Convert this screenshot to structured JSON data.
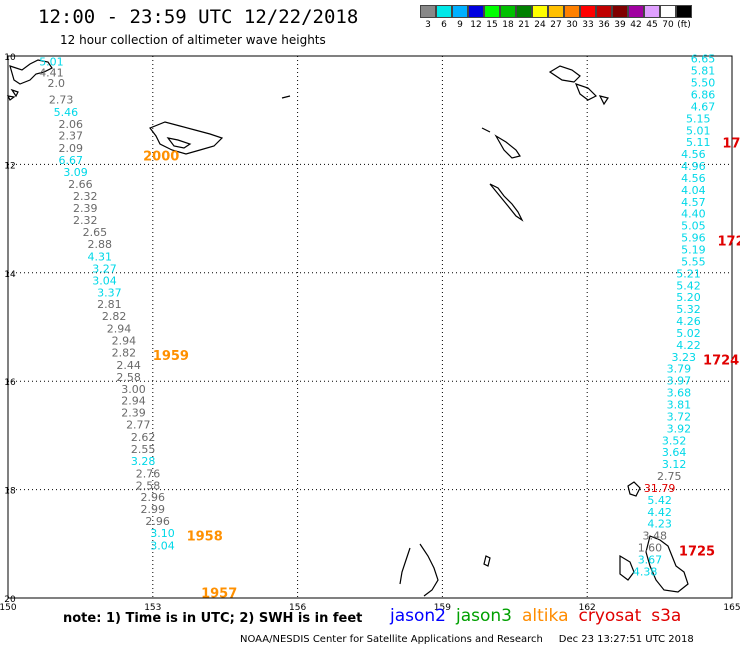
{
  "header": {
    "title": "12:00 - 23:59 UTC 12/22/2018",
    "subtitle": "12 hour collection of altimeter wave heights"
  },
  "legend": {
    "colors": [
      "#888888",
      "#00e8e8",
      "#00b0ff",
      "#0000e0",
      "#00ff00",
      "#00c000",
      "#008000",
      "#ffff00",
      "#ffc000",
      "#ff8000",
      "#ff0000",
      "#c00000",
      "#800000",
      "#a000a0",
      "#e0a0ff",
      "#ffffff",
      "#000000"
    ],
    "labels": [
      "3",
      "6",
      "9",
      "12",
      "15",
      "18",
      "21",
      "24",
      "27",
      "30",
      "33",
      "36",
      "39",
      "42",
      "45",
      "70",
      "(ft)"
    ]
  },
  "axes": {
    "lon_ticks": [
      "150",
      "153",
      "156",
      "159",
      "162",
      "165"
    ],
    "lat_ticks": [
      "10",
      "12",
      "14",
      "16",
      "18",
      "20"
    ]
  },
  "tracks": {
    "left": {
      "times": [
        {
          "text": "2000",
          "lat": 11.84,
          "lon": 152.8
        },
        {
          "text": "1959",
          "lat": 15.52,
          "lon": 153.0
        },
        {
          "text": "1958",
          "lat": 18.85,
          "lon": 153.7
        },
        {
          "text": "1957",
          "lat": 19.9,
          "lon": 154.0
        }
      ],
      "points": [
        {
          "v": "5.01",
          "lat": 10.1,
          "lon": 150.9,
          "c": "cyan"
        },
        {
          "v": "4.41",
          "lat": 10.3,
          "lon": 150.9,
          "c": "gray"
        },
        {
          "v": "2.0",
          "lat": 10.5,
          "lon": 151.0,
          "c": "gray"
        },
        {
          "v": "2.73",
          "lat": 10.8,
          "lon": 151.1,
          "c": "gray"
        },
        {
          "v": "5.46",
          "lat": 11.03,
          "lon": 151.2,
          "c": "cyan"
        },
        {
          "v": "2.06",
          "lat": 11.25,
          "lon": 151.3,
          "c": "gray"
        },
        {
          "v": "2.37",
          "lat": 11.47,
          "lon": 151.3,
          "c": "gray"
        },
        {
          "v": "2.09",
          "lat": 11.7,
          "lon": 151.3,
          "c": "gray"
        },
        {
          "v": "6.67",
          "lat": 11.92,
          "lon": 151.3,
          "c": "cyan"
        },
        {
          "v": "3.09",
          "lat": 12.14,
          "lon": 151.4,
          "c": "cyan"
        },
        {
          "v": "2.66",
          "lat": 12.36,
          "lon": 151.5,
          "c": "gray"
        },
        {
          "v": "2.32",
          "lat": 12.58,
          "lon": 151.6,
          "c": "gray"
        },
        {
          "v": "2.39",
          "lat": 12.8,
          "lon": 151.6,
          "c": "gray"
        },
        {
          "v": "2.32",
          "lat": 13.03,
          "lon": 151.6,
          "c": "gray"
        },
        {
          "v": "2.65",
          "lat": 13.25,
          "lon": 151.8,
          "c": "gray"
        },
        {
          "v": "2.88",
          "lat": 13.47,
          "lon": 151.9,
          "c": "gray"
        },
        {
          "v": "4.31",
          "lat": 13.7,
          "lon": 151.9,
          "c": "cyan"
        },
        {
          "v": "3.27",
          "lat": 13.92,
          "lon": 152.0,
          "c": "cyan"
        },
        {
          "v": "3.04",
          "lat": 14.14,
          "lon": 152.0,
          "c": "cyan"
        },
        {
          "v": "3.37",
          "lat": 14.36,
          "lon": 152.1,
          "c": "cyan"
        },
        {
          "v": "2.81",
          "lat": 14.58,
          "lon": 152.1,
          "c": "gray"
        },
        {
          "v": "2.82",
          "lat": 14.8,
          "lon": 152.2,
          "c": "gray"
        },
        {
          "v": "2.94",
          "lat": 15.03,
          "lon": 152.3,
          "c": "gray"
        },
        {
          "v": "2.94",
          "lat": 15.25,
          "lon": 152.4,
          "c": "gray"
        },
        {
          "v": "2.82",
          "lat": 15.47,
          "lon": 152.4,
          "c": "gray"
        },
        {
          "v": "2.44",
          "lat": 15.7,
          "lon": 152.5,
          "c": "gray"
        },
        {
          "v": "2.58",
          "lat": 15.92,
          "lon": 152.5,
          "c": "gray"
        },
        {
          "v": "3.00",
          "lat": 16.14,
          "lon": 152.6,
          "c": "gray"
        },
        {
          "v": "2.94",
          "lat": 16.36,
          "lon": 152.6,
          "c": "gray"
        },
        {
          "v": "2.39",
          "lat": 16.58,
          "lon": 152.6,
          "c": "gray"
        },
        {
          "v": "2.77",
          "lat": 16.8,
          "lon": 152.7,
          "c": "gray"
        },
        {
          "v": "2.62",
          "lat": 17.03,
          "lon": 152.8,
          "c": "gray"
        },
        {
          "v": "2.55",
          "lat": 17.25,
          "lon": 152.8,
          "c": "gray"
        },
        {
          "v": "3.28",
          "lat": 17.47,
          "lon": 152.8,
          "c": "cyan"
        },
        {
          "v": "2.76",
          "lat": 17.7,
          "lon": 152.9,
          "c": "gray"
        },
        {
          "v": "2.58",
          "lat": 17.92,
          "lon": 152.9,
          "c": "gray"
        },
        {
          "v": "2.96",
          "lat": 18.14,
          "lon": 153.0,
          "c": "gray"
        },
        {
          "v": "2.99",
          "lat": 18.36,
          "lon": 153.0,
          "c": "gray"
        },
        {
          "v": "2.96",
          "lat": 18.58,
          "lon": 153.1,
          "c": "gray"
        },
        {
          "v": "3.10",
          "lat": 18.8,
          "lon": 153.2,
          "c": "cyan"
        },
        {
          "v": "3.04",
          "lat": 19.03,
          "lon": 153.2,
          "c": "cyan"
        }
      ]
    },
    "right": {
      "times": [
        {
          "text": "17",
          "lat": 11.6,
          "lon": 164.8
        },
        {
          "text": "172",
          "lat": 13.4,
          "lon": 164.7
        },
        {
          "text": "1724",
          "lat": 15.6,
          "lon": 164.4
        },
        {
          "text": "1725",
          "lat": 19.12,
          "lon": 163.9
        }
      ],
      "points": [
        {
          "v": "6.65",
          "lat": 10.05,
          "lon": 164.4,
          "c": "cyan"
        },
        {
          "v": "5.81",
          "lat": 10.27,
          "lon": 164.4,
          "c": "cyan"
        },
        {
          "v": "5.50",
          "lat": 10.49,
          "lon": 164.4,
          "c": "cyan"
        },
        {
          "v": "6.86",
          "lat": 10.71,
          "lon": 164.4,
          "c": "cyan"
        },
        {
          "v": "4.67",
          "lat": 10.93,
          "lon": 164.4,
          "c": "cyan"
        },
        {
          "v": "5.15",
          "lat": 11.15,
          "lon": 164.3,
          "c": "cyan"
        },
        {
          "v": "5.01",
          "lat": 11.37,
          "lon": 164.3,
          "c": "cyan"
        },
        {
          "v": "5.11",
          "lat": 11.59,
          "lon": 164.3,
          "c": "cyan"
        },
        {
          "v": "4.56",
          "lat": 11.81,
          "lon": 164.2,
          "c": "cyan"
        },
        {
          "v": "4.96",
          "lat": 12.03,
          "lon": 164.2,
          "c": "cyan"
        },
        {
          "v": "4.56",
          "lat": 12.25,
          "lon": 164.2,
          "c": "cyan"
        },
        {
          "v": "4.04",
          "lat": 12.47,
          "lon": 164.2,
          "c": "cyan"
        },
        {
          "v": "4.57",
          "lat": 12.69,
          "lon": 164.2,
          "c": "cyan"
        },
        {
          "v": "4.40",
          "lat": 12.91,
          "lon": 164.2,
          "c": "cyan"
        },
        {
          "v": "5.05",
          "lat": 13.13,
          "lon": 164.2,
          "c": "cyan"
        },
        {
          "v": "5.96",
          "lat": 13.35,
          "lon": 164.2,
          "c": "cyan"
        },
        {
          "v": "5.19",
          "lat": 13.57,
          "lon": 164.2,
          "c": "cyan"
        },
        {
          "v": "5.55",
          "lat": 13.79,
          "lon": 164.2,
          "c": "cyan"
        },
        {
          "v": "5.21",
          "lat": 14.01,
          "lon": 164.1,
          "c": "cyan"
        },
        {
          "v": "5.42",
          "lat": 14.23,
          "lon": 164.1,
          "c": "cyan"
        },
        {
          "v": "5.20",
          "lat": 14.45,
          "lon": 164.1,
          "c": "cyan"
        },
        {
          "v": "5.32",
          "lat": 14.67,
          "lon": 164.1,
          "c": "cyan"
        },
        {
          "v": "4.26",
          "lat": 14.89,
          "lon": 164.1,
          "c": "cyan"
        },
        {
          "v": "5.02",
          "lat": 15.11,
          "lon": 164.1,
          "c": "cyan"
        },
        {
          "v": "4.22",
          "lat": 15.33,
          "lon": 164.1,
          "c": "cyan"
        },
        {
          "v": "3.23",
          "lat": 15.55,
          "lon": 164.0,
          "c": "cyan"
        },
        {
          "v": "3.79",
          "lat": 15.77,
          "lon": 163.9,
          "c": "cyan"
        },
        {
          "v": "3.97",
          "lat": 15.99,
          "lon": 163.9,
          "c": "cyan"
        },
        {
          "v": "3.68",
          "lat": 16.21,
          "lon": 163.9,
          "c": "cyan"
        },
        {
          "v": "3.81",
          "lat": 16.43,
          "lon": 163.9,
          "c": "cyan"
        },
        {
          "v": "3.72",
          "lat": 16.65,
          "lon": 163.9,
          "c": "cyan"
        },
        {
          "v": "3.92",
          "lat": 16.87,
          "lon": 163.9,
          "c": "cyan"
        },
        {
          "v": "3.52",
          "lat": 17.09,
          "lon": 163.8,
          "c": "cyan"
        },
        {
          "v": "3.64",
          "lat": 17.31,
          "lon": 163.8,
          "c": "cyan"
        },
        {
          "v": "3.12",
          "lat": 17.53,
          "lon": 163.8,
          "c": "cyan"
        },
        {
          "v": "2.75",
          "lat": 17.75,
          "lon": 163.7,
          "c": "gray"
        },
        {
          "v": "31.79",
          "lat": 17.97,
          "lon": 163.5,
          "c": "red"
        },
        {
          "v": "5.42",
          "lat": 18.19,
          "lon": 163.5,
          "c": "cyan"
        },
        {
          "v": "4.42",
          "lat": 18.41,
          "lon": 163.5,
          "c": "cyan"
        },
        {
          "v": "4.23",
          "lat": 18.63,
          "lon": 163.5,
          "c": "cyan"
        },
        {
          "v": "3.48",
          "lat": 18.85,
          "lon": 163.4,
          "c": "gray"
        },
        {
          "v": "1.60",
          "lat": 19.07,
          "lon": 163.3,
          "c": "gray"
        },
        {
          "v": "3.67",
          "lat": 19.29,
          "lon": 163.3,
          "c": "cyan"
        },
        {
          "v": "4.38",
          "lat": 19.51,
          "lon": 163.2,
          "c": "cyan"
        }
      ]
    }
  },
  "footer": {
    "note": "note: 1) Time is in UTC; 2) SWH is in feet",
    "satellites": [
      {
        "name": "jason2",
        "color": "#0000ff"
      },
      {
        "name": "jason3",
        "color": "#00a000"
      },
      {
        "name": "altika",
        "color": "#ff8c00"
      },
      {
        "name": "cryosat",
        "color": "#e00000"
      },
      {
        "name": "s3a",
        "color": "#e00000"
      }
    ],
    "credit": "NOAA/NESDIS Center for Satellite Applications and Research     Dec 23 13:27:51 UTC 2018"
  }
}
